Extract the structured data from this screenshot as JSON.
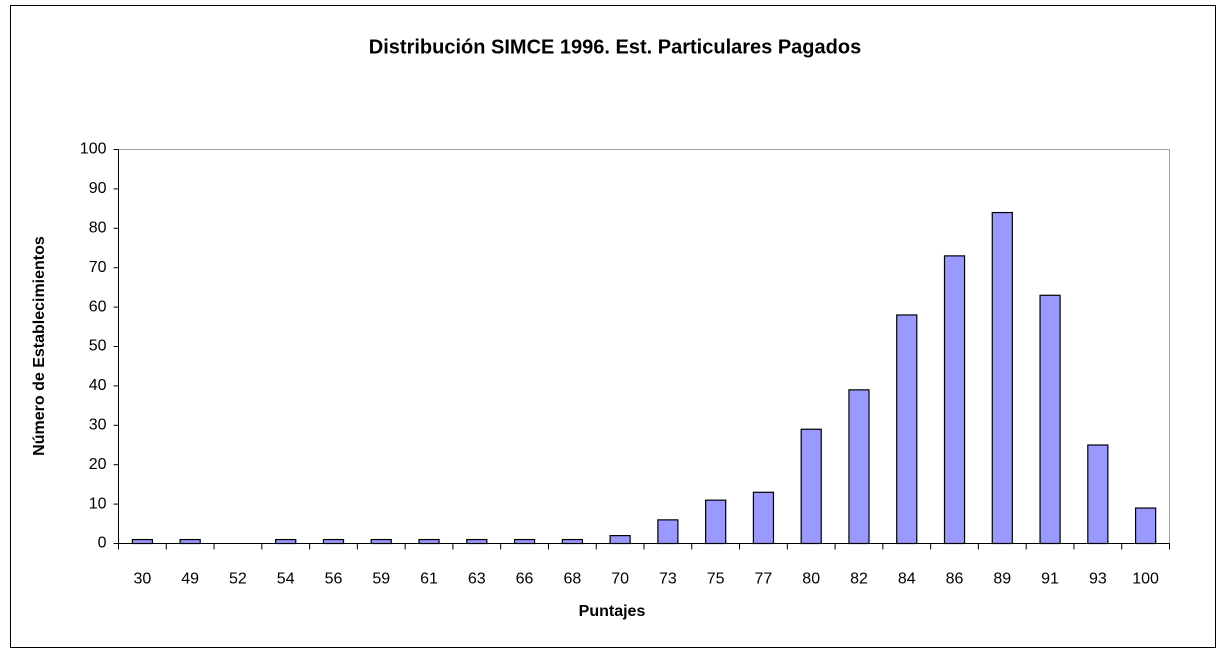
{
  "chart_data": {
    "type": "bar",
    "title": "Distribución SIMCE 1996. Est. Particulares Pagados",
    "x_label": "Puntajes",
    "y_label": "Número de Establecimientos",
    "categories": [
      "30",
      "49",
      "52",
      "54",
      "56",
      "59",
      "61",
      "63",
      "66",
      "68",
      "70",
      "73",
      "75",
      "77",
      "80",
      "82",
      "84",
      "86",
      "89",
      "91",
      "93",
      "100"
    ],
    "values": [
      1,
      1,
      0,
      1,
      1,
      1,
      1,
      1,
      1,
      1,
      2,
      6,
      11,
      13,
      29,
      39,
      58,
      73,
      84,
      63,
      25,
      9
    ],
    "color": "#9999ff",
    "ylim": [
      0,
      100
    ],
    "yticks": [
      0,
      10,
      20,
      30,
      40,
      50,
      60,
      70,
      80,
      90,
      100
    ],
    "grid": false
  }
}
